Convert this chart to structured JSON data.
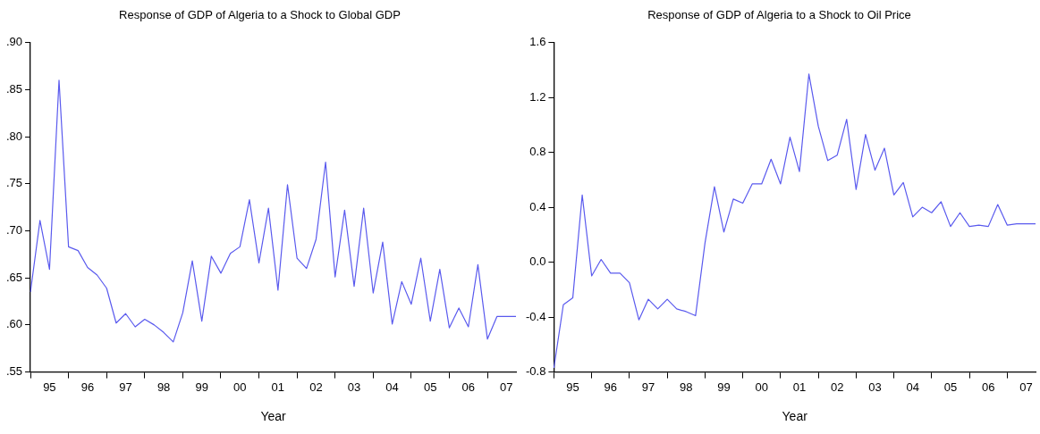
{
  "chart_data": [
    {
      "type": "line",
      "title": "Response of GDP of Algeria to a Shock to Global GDP",
      "xlabel": "Year",
      "categories": [
        null,
        null,
        "95",
        null,
        null,
        null,
        "96",
        null,
        null,
        null,
        "97",
        null,
        null,
        null,
        "98",
        null,
        null,
        null,
        "99",
        null,
        null,
        null,
        "00",
        null,
        null,
        null,
        "01",
        null,
        null,
        null,
        "02",
        null,
        null,
        null,
        "03",
        null,
        null,
        null,
        "04",
        null,
        null,
        null,
        "05",
        null,
        null,
        null,
        "06",
        null,
        null,
        null,
        "07",
        null
      ],
      "series": [
        {
          "color": "#5a5aee",
          "values": [
            0.635,
            0.711,
            0.659,
            0.86,
            0.683,
            0.679,
            0.661,
            0.653,
            0.639,
            0.602,
            0.612,
            0.598,
            0.606,
            0.6,
            0.592,
            0.582,
            0.613,
            0.668,
            0.604,
            0.673,
            0.655,
            0.676,
            0.683,
            0.733,
            0.666,
            0.724,
            0.637,
            0.749,
            0.671,
            0.66,
            0.691,
            0.773,
            0.651,
            0.722,
            0.641,
            0.724,
            0.634,
            0.688,
            0.601,
            0.646,
            0.622,
            0.671,
            0.604,
            0.659,
            0.597,
            0.618,
            0.598,
            0.664,
            0.585,
            0.609,
            0.609,
            0.609
          ]
        }
      ],
      "ylim": [
        0.55,
        0.9
      ],
      "yticks": [
        {
          "value": 0.55,
          "label": ".55"
        },
        {
          "value": 0.6,
          "label": ".60"
        },
        {
          "value": 0.65,
          "label": ".65"
        },
        {
          "value": 0.7,
          "label": ".70"
        },
        {
          "value": 0.75,
          "label": ".75"
        },
        {
          "value": 0.8,
          "label": ".80"
        },
        {
          "value": 0.85,
          "label": ".85"
        },
        {
          "value": 0.9,
          "label": ".90"
        }
      ],
      "legend": false,
      "marker": "none"
    },
    {
      "type": "line",
      "title": "Response of GDP of Algeria to a Shock to Oil Price",
      "xlabel": "Year",
      "categories": [
        null,
        null,
        "95",
        null,
        null,
        null,
        "96",
        null,
        null,
        null,
        "97",
        null,
        null,
        null,
        "98",
        null,
        null,
        null,
        "99",
        null,
        null,
        null,
        "00",
        null,
        null,
        null,
        "01",
        null,
        null,
        null,
        "02",
        null,
        null,
        null,
        "03",
        null,
        null,
        null,
        "04",
        null,
        null,
        null,
        "05",
        null,
        null,
        null,
        "06",
        null,
        null,
        null,
        "07",
        null
      ],
      "series": [
        {
          "color": "#5a5aee",
          "values": [
            -0.77,
            -0.31,
            -0.26,
            0.49,
            -0.1,
            0.02,
            -0.08,
            -0.08,
            -0.15,
            -0.42,
            -0.27,
            -0.34,
            -0.27,
            -0.34,
            -0.36,
            -0.39,
            0.14,
            0.55,
            0.22,
            0.46,
            0.43,
            0.57,
            0.57,
            0.75,
            0.57,
            0.91,
            0.66,
            1.37,
            0.99,
            0.74,
            0.78,
            1.04,
            0.53,
            0.93,
            0.67,
            0.83,
            0.49,
            0.58,
            0.33,
            0.4,
            0.36,
            0.44,
            0.26,
            0.36,
            0.26,
            0.27,
            0.26,
            0.42,
            0.27,
            0.28,
            0.28,
            0.28
          ]
        }
      ],
      "ylim": [
        -0.8,
        1.6
      ],
      "yticks": [
        -0.8,
        -0.4,
        {
          "value": 0,
          "label": "0.0"
        },
        0.4,
        0.8,
        1.2,
        1.6
      ],
      "legend": false,
      "marker": "none"
    }
  ]
}
